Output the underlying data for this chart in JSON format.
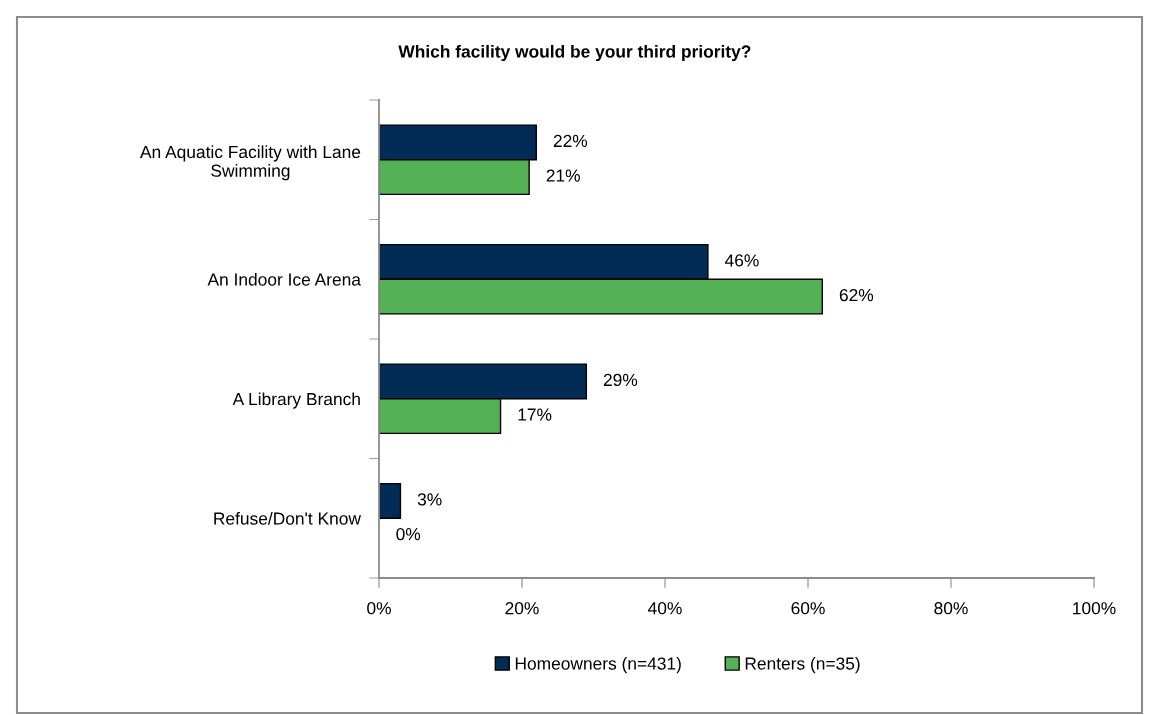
{
  "chart_data": {
    "type": "bar",
    "orientation": "horizontal",
    "title": "Which facility would be your third priority?",
    "categories": [
      "An Aquatic Facility with Lane\nSwimming",
      "An Indoor Ice Arena",
      "A Library Branch",
      "Refuse/Don't Know"
    ],
    "series": [
      {
        "name": "Homeowners (n=431)",
        "color": "#022b55",
        "values": [
          22,
          46,
          29,
          3
        ],
        "value_labels": [
          "22%",
          "46%",
          "29%",
          "3%"
        ]
      },
      {
        "name": "Renters (n=35)",
        "color": "#55b155",
        "values": [
          21,
          62,
          17,
          0
        ],
        "value_labels": [
          "21%",
          "62%",
          "17%",
          "0%"
        ]
      }
    ],
    "xlim": [
      0,
      100
    ],
    "xticks": [
      {
        "value": 0,
        "label": "0%"
      },
      {
        "value": 20,
        "label": "20%"
      },
      {
        "value": 40,
        "label": "40%"
      },
      {
        "value": 60,
        "label": "60%"
      },
      {
        "value": 80,
        "label": "80%"
      },
      {
        "value": 100,
        "label": "100%"
      }
    ],
    "grid": false,
    "legend": "bottom"
  }
}
